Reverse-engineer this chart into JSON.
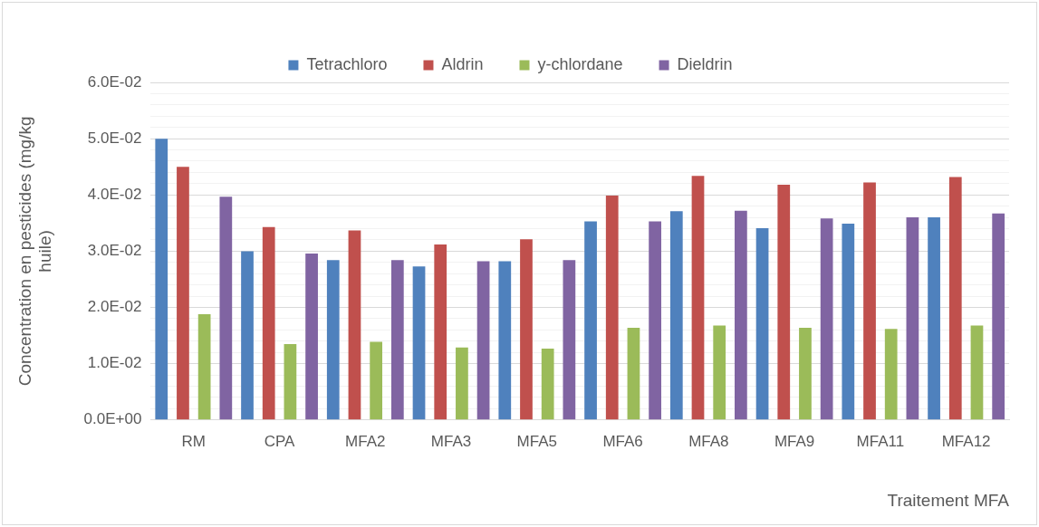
{
  "chart_data": {
    "type": "bar",
    "xlabel": "Traitement MFA",
    "ylabel": "Concentration en pesticides (mg/kg huile)",
    "categories": [
      "RM",
      "CPA",
      "MFA2",
      "MFA3",
      "MFA5",
      "MFA6",
      "MFA8",
      "MFA9",
      "MFA11",
      "MFA12"
    ],
    "series": [
      {
        "name": "Tetrachloro",
        "color": "#4f81bd",
        "values": [
          0.05,
          0.03,
          0.0284,
          0.0273,
          0.0282,
          0.0353,
          0.0371,
          0.0341,
          0.0349,
          0.036
        ]
      },
      {
        "name": "Aldrin",
        "color": "#c0504d",
        "values": [
          0.045,
          0.0343,
          0.0337,
          0.0312,
          0.0321,
          0.0399,
          0.0434,
          0.0418,
          0.0422,
          0.0432
        ]
      },
      {
        "name": "y-chlordane",
        "color": "#9bbb59",
        "values": [
          0.0188,
          0.0135,
          0.0139,
          0.0129,
          0.0127,
          0.0164,
          0.0168,
          0.0164,
          0.0162,
          0.0168
        ]
      },
      {
        "name": "Dieldrin",
        "color": "#8064a2",
        "values": [
          0.0397,
          0.0296,
          0.0284,
          0.0282,
          0.0284,
          0.0353,
          0.0372,
          0.0358,
          0.036,
          0.0367
        ]
      }
    ],
    "ylim": [
      0,
      0.06
    ],
    "yticks": [
      {
        "value": 0,
        "label": "0.0E+00"
      },
      {
        "value": 0.002,
        "label": null
      },
      {
        "value": 0.004,
        "label": null
      },
      {
        "value": 0.006,
        "label": null
      },
      {
        "value": 0.008,
        "label": null
      },
      {
        "value": 0.01,
        "label": "1.0E-02"
      },
      {
        "value": 0.012,
        "label": null
      },
      {
        "value": 0.014,
        "label": null
      },
      {
        "value": 0.016,
        "label": null
      },
      {
        "value": 0.018,
        "label": null
      },
      {
        "value": 0.02,
        "label": "2.0E-02"
      },
      {
        "value": 0.022,
        "label": null
      },
      {
        "value": 0.024,
        "label": null
      },
      {
        "value": 0.026,
        "label": null
      },
      {
        "value": 0.028,
        "label": null
      },
      {
        "value": 0.03,
        "label": "3.0E-02"
      },
      {
        "value": 0.032,
        "label": null
      },
      {
        "value": 0.034,
        "label": null
      },
      {
        "value": 0.036,
        "label": null
      },
      {
        "value": 0.038,
        "label": null
      },
      {
        "value": 0.04,
        "label": "4.0E-02"
      },
      {
        "value": 0.042,
        "label": null
      },
      {
        "value": 0.044,
        "label": null
      },
      {
        "value": 0.046,
        "label": null
      },
      {
        "value": 0.048,
        "label": null
      },
      {
        "value": 0.05,
        "label": "5.0E-02"
      },
      {
        "value": 0.052,
        "label": null
      },
      {
        "value": 0.054,
        "label": null
      },
      {
        "value": 0.056,
        "label": null
      },
      {
        "value": 0.058,
        "label": null
      },
      {
        "value": 0.06,
        "label": "6.0E-02"
      }
    ],
    "grid": "y",
    "legend": "top"
  }
}
